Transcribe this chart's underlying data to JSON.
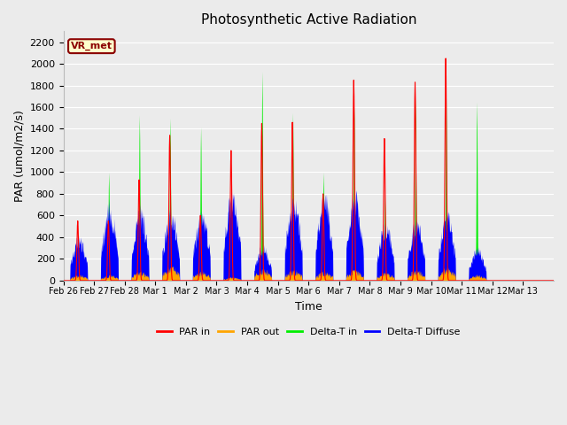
{
  "title": "Photosynthetic Active Radiation",
  "ylabel": "PAR (umol/m2/s)",
  "xlabel": "Time",
  "ylim": [
    0,
    2300
  ],
  "yticks": [
    0,
    200,
    400,
    600,
    800,
    1000,
    1200,
    1400,
    1600,
    1800,
    2000,
    2200
  ],
  "plot_bg_color": "#ebebeb",
  "fig_bg_color": "#ebebeb",
  "annotation_text": "VR_met",
  "annotation_bg": "#ffffcc",
  "annotation_border": "#8B0000",
  "annotation_text_color": "#8B0000",
  "colors": {
    "PAR_in": "#ff0000",
    "PAR_out": "#ffa500",
    "Delta_T_in": "#00ee00",
    "Delta_T_Diffuse": "#0000ff"
  },
  "legend_labels": [
    "PAR in",
    "PAR out",
    "Delta-T in",
    "Delta-T Diffuse"
  ],
  "x_tick_labels": [
    "Feb 26",
    "Feb 27",
    "Feb 28",
    "Mar 1",
    "Mar 2",
    "Mar 3",
    "Mar 4",
    "Mar 5",
    "Mar 6",
    "Mar 7",
    "Mar 8",
    "Mar 9",
    "Mar 10",
    "Mar 11",
    "Mar 12",
    "Mar 13"
  ],
  "num_days": 16,
  "points_per_day": 96
}
